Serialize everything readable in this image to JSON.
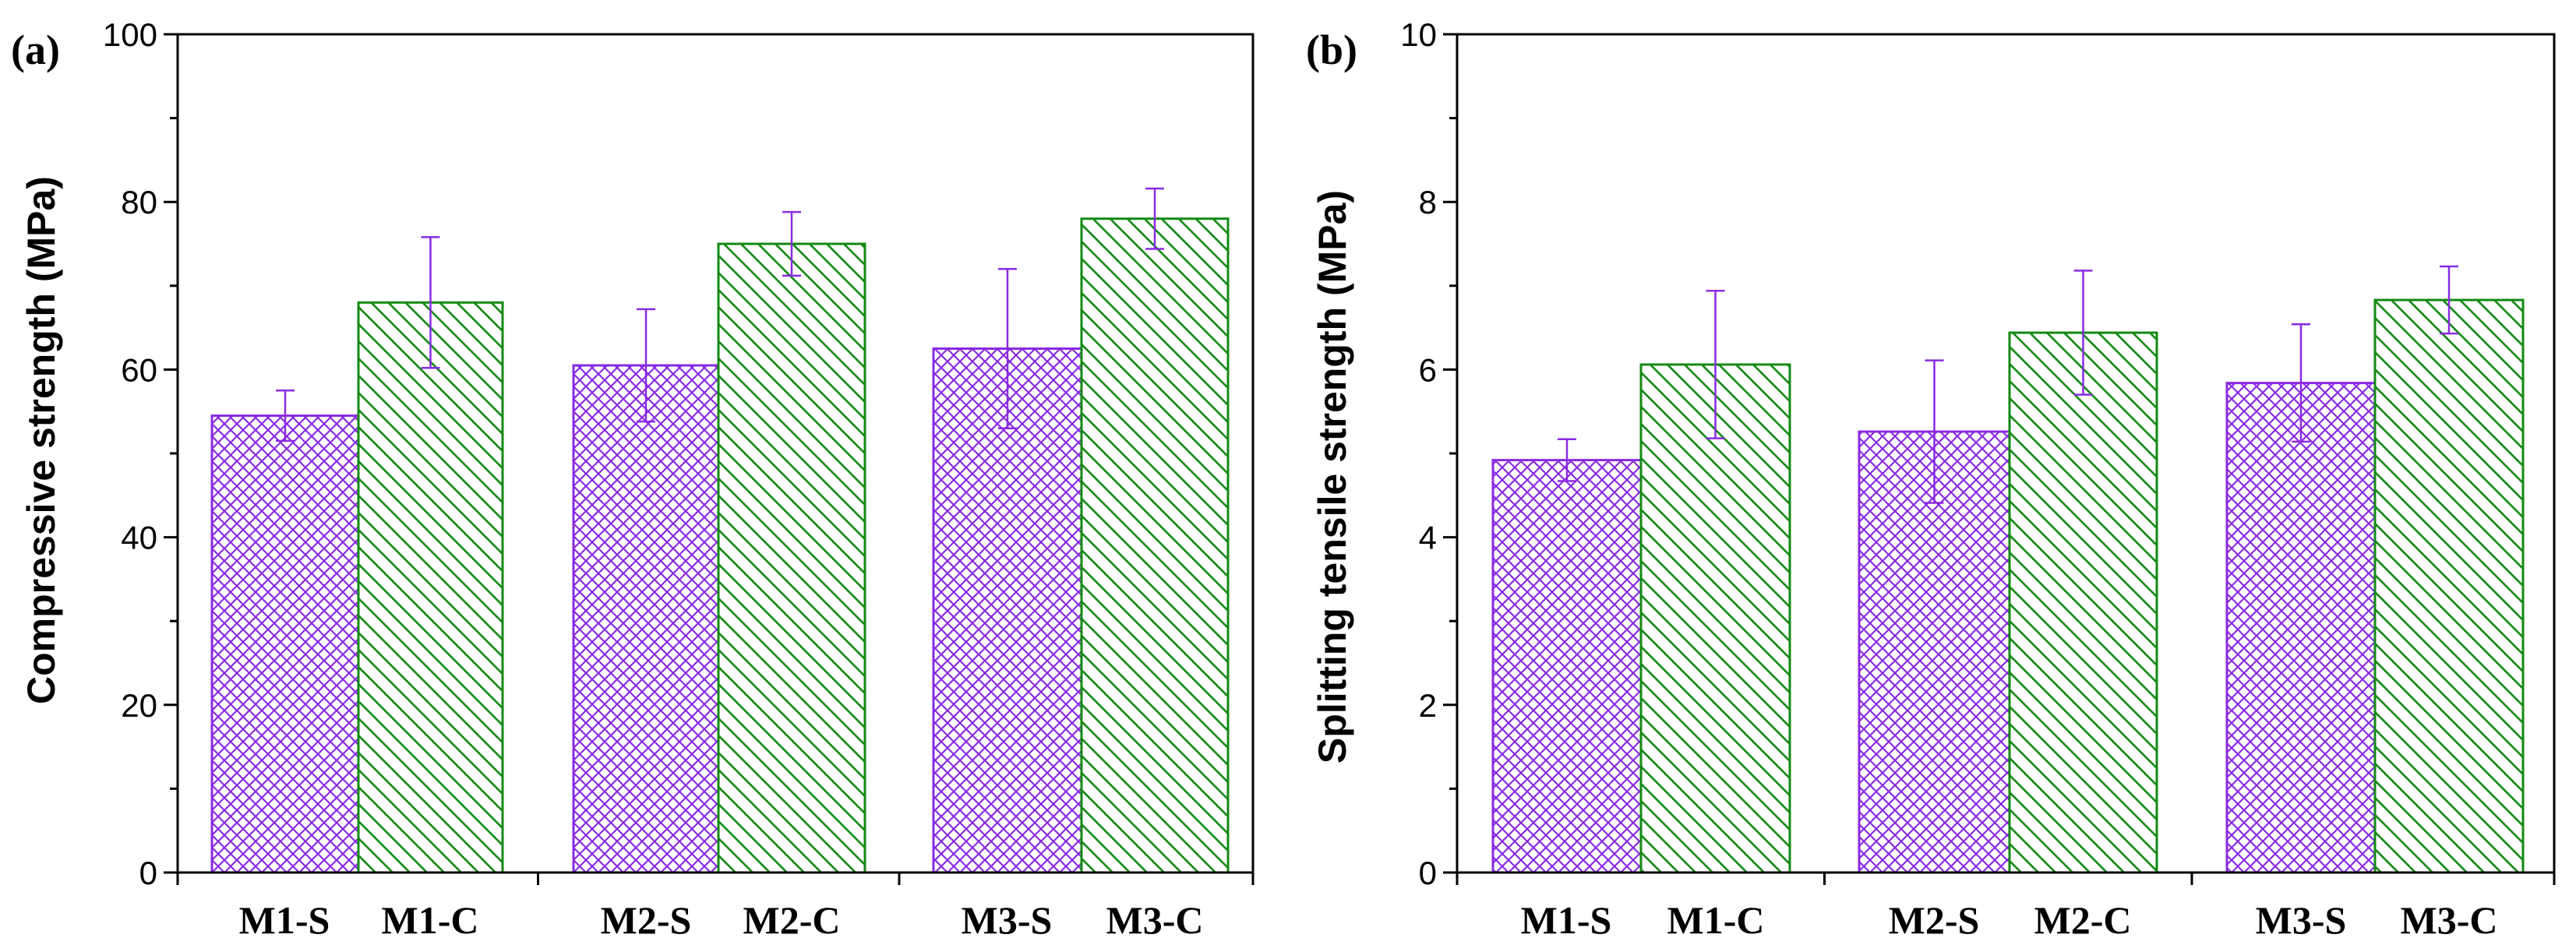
{
  "chart_data": [
    {
      "type": "bar",
      "panel_label": "(a)",
      "ylabel": "Compressive strength (MPa)",
      "xlabel": "",
      "ylim": [
        0,
        100
      ],
      "yticks": [
        0,
        20,
        40,
        60,
        80,
        100
      ],
      "categories": [
        "M1-S",
        "M1-C",
        "M2-S",
        "M2-C",
        "M3-S",
        "M3-C"
      ],
      "values": [
        54.5,
        68.0,
        60.5,
        75.0,
        62.5,
        78.0
      ],
      "errors": [
        3.0,
        7.8,
        6.7,
        3.8,
        9.5,
        3.6
      ],
      "groups": [
        "M1",
        "M2",
        "M3"
      ]
    },
    {
      "type": "bar",
      "panel_label": "(b)",
      "ylabel": "Splitting tensile strength (MPa)",
      "xlabel": "",
      "ylim": [
        0,
        10
      ],
      "yticks": [
        0,
        2,
        4,
        6,
        8,
        10
      ],
      "categories": [
        "M1-S",
        "M1-C",
        "M2-S",
        "M2-C",
        "M3-S",
        "M3-C"
      ],
      "values": [
        4.92,
        6.06,
        5.26,
        6.44,
        5.84,
        6.83
      ],
      "errors": [
        0.25,
        0.88,
        0.85,
        0.74,
        0.7,
        0.4
      ],
      "groups": [
        "M1",
        "M2",
        "M3"
      ]
    }
  ],
  "colors": {
    "s_bars": "#8a2be2",
    "c_bars": "#138a13",
    "error_bars": "#8a2be2"
  }
}
